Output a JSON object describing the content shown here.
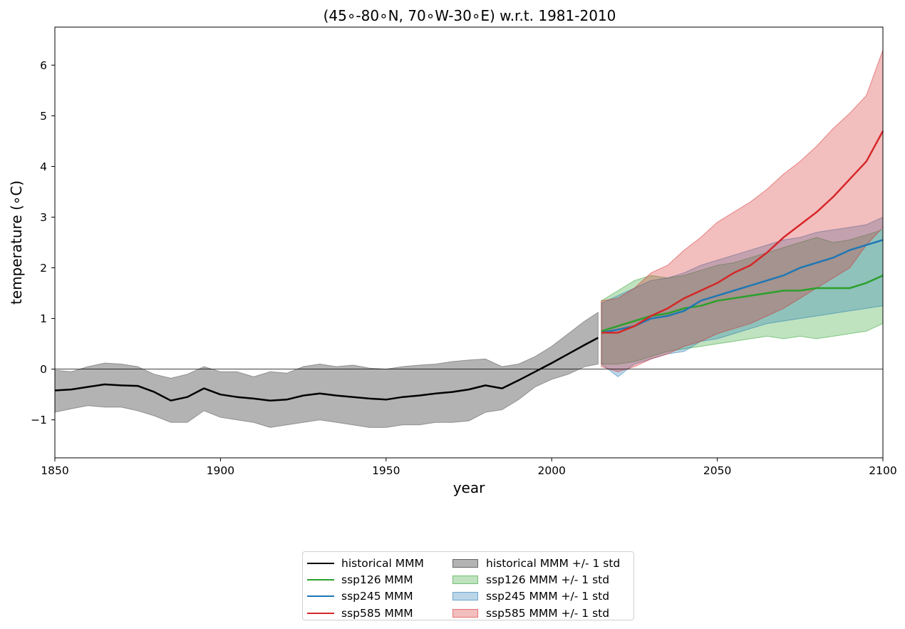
{
  "chart_data": {
    "type": "area",
    "title": "(45$^\\circ$-80$^\\circ$N, 70$^\\circ$W-30$^\\circ$E) w.r.t. 1981-2010",
    "title_display": "(45∘-80∘N, 70∘W-30∘E) w.r.t. 1981-2010",
    "xlabel": "year",
    "ylabel": "temperature (∘C)",
    "xlim": [
      1850,
      2100
    ],
    "ylim": [
      -1.75,
      6.75
    ],
    "xticks": [
      1850,
      1900,
      1950,
      2000,
      2050,
      2100
    ],
    "yticks": [
      -1,
      0,
      1,
      2,
      3,
      4,
      5,
      6
    ],
    "ytick_labels": [
      "−1",
      "0",
      "1",
      "2",
      "3",
      "4",
      "5",
      "6"
    ],
    "zero_line": true,
    "grid": false,
    "legend_placement": "bottom-center (below axes)",
    "series": [
      {
        "name": "historical MMM",
        "band_name": "historical MMM +/- 1 std",
        "color": "#000000",
        "band_color": "#808080",
        "x": [
          1850,
          1855,
          1860,
          1865,
          1870,
          1875,
          1880,
          1885,
          1890,
          1895,
          1900,
          1905,
          1910,
          1915,
          1920,
          1925,
          1930,
          1935,
          1940,
          1945,
          1950,
          1955,
          1960,
          1965,
          1970,
          1975,
          1980,
          1985,
          1990,
          1995,
          2000,
          2005,
          2010,
          2014
        ],
        "mean": [
          -0.42,
          -0.4,
          -0.35,
          -0.3,
          -0.32,
          -0.33,
          -0.45,
          -0.62,
          -0.55,
          -0.38,
          -0.5,
          -0.55,
          -0.58,
          -0.62,
          -0.6,
          -0.52,
          -0.48,
          -0.52,
          -0.55,
          -0.58,
          -0.6,
          -0.55,
          -0.52,
          -0.48,
          -0.45,
          -0.4,
          -0.32,
          -0.38,
          -0.22,
          -0.05,
          0.12,
          0.3,
          0.48,
          0.62
        ],
        "upper": [
          -0.02,
          -0.05,
          0.05,
          0.12,
          0.1,
          0.05,
          -0.1,
          -0.18,
          -0.1,
          0.05,
          -0.05,
          -0.05,
          -0.15,
          -0.05,
          -0.08,
          0.05,
          0.1,
          0.05,
          0.08,
          0.02,
          0.0,
          0.05,
          0.08,
          0.1,
          0.15,
          0.18,
          0.2,
          0.05,
          0.1,
          0.25,
          0.45,
          0.7,
          0.95,
          1.12
        ],
        "lower": [
          -0.85,
          -0.78,
          -0.72,
          -0.75,
          -0.75,
          -0.82,
          -0.92,
          -1.05,
          -1.05,
          -0.82,
          -0.95,
          -1.0,
          -1.05,
          -1.15,
          -1.1,
          -1.05,
          -1.0,
          -1.05,
          -1.1,
          -1.15,
          -1.15,
          -1.1,
          -1.1,
          -1.05,
          -1.05,
          -1.02,
          -0.85,
          -0.8,
          -0.6,
          -0.35,
          -0.2,
          -0.1,
          0.05,
          0.1
        ]
      },
      {
        "name": "ssp126 MMM",
        "band_name": "ssp126 MMM +/- 1 std",
        "color": "#2ca02c",
        "band_color": "#2ca02c",
        "x": [
          2015,
          2020,
          2025,
          2030,
          2035,
          2040,
          2045,
          2050,
          2055,
          2060,
          2065,
          2070,
          2075,
          2080,
          2085,
          2090,
          2095,
          2100
        ],
        "mean": [
          0.75,
          0.85,
          0.95,
          1.05,
          1.1,
          1.2,
          1.25,
          1.35,
          1.4,
          1.45,
          1.5,
          1.55,
          1.55,
          1.6,
          1.6,
          1.6,
          1.7,
          1.85
        ],
        "upper": [
          1.35,
          1.55,
          1.75,
          1.85,
          1.8,
          1.85,
          1.95,
          2.05,
          2.1,
          2.2,
          2.3,
          2.4,
          2.5,
          2.6,
          2.5,
          2.55,
          2.65,
          2.75
        ],
        "lower": [
          0.1,
          0.1,
          0.15,
          0.25,
          0.35,
          0.4,
          0.45,
          0.5,
          0.55,
          0.6,
          0.65,
          0.6,
          0.65,
          0.6,
          0.65,
          0.7,
          0.75,
          0.9
        ]
      },
      {
        "name": "ssp245 MMM",
        "band_name": "ssp245 MMM +/- 1 std",
        "color": "#1f77b4",
        "band_color": "#1f77b4",
        "x": [
          2015,
          2020,
          2025,
          2030,
          2035,
          2040,
          2045,
          2050,
          2055,
          2060,
          2065,
          2070,
          2075,
          2080,
          2085,
          2090,
          2095,
          2100
        ],
        "mean": [
          0.72,
          0.78,
          0.85,
          1.0,
          1.05,
          1.15,
          1.35,
          1.45,
          1.55,
          1.65,
          1.75,
          1.85,
          2.0,
          2.1,
          2.2,
          2.35,
          2.45,
          2.55
        ],
        "upper": [
          1.3,
          1.45,
          1.6,
          1.75,
          1.8,
          1.9,
          2.05,
          2.15,
          2.25,
          2.35,
          2.45,
          2.55,
          2.6,
          2.7,
          2.75,
          2.8,
          2.85,
          3.0
        ],
        "lower": [
          0.1,
          -0.15,
          0.1,
          0.2,
          0.3,
          0.35,
          0.55,
          0.6,
          0.7,
          0.8,
          0.9,
          0.95,
          1.0,
          1.05,
          1.1,
          1.15,
          1.2,
          1.25
        ]
      },
      {
        "name": "ssp585 MMM",
        "band_name": "ssp585 MMM +/- 1 std",
        "color": "#d62728",
        "band_color": "#d62728",
        "x": [
          2015,
          2020,
          2025,
          2030,
          2035,
          2040,
          2045,
          2050,
          2055,
          2060,
          2065,
          2070,
          2075,
          2080,
          2085,
          2090,
          2095,
          2100
        ],
        "mean": [
          0.72,
          0.72,
          0.85,
          1.05,
          1.2,
          1.4,
          1.55,
          1.7,
          1.9,
          2.05,
          2.3,
          2.6,
          2.85,
          3.1,
          3.4,
          3.75,
          4.1,
          4.7
        ],
        "upper": [
          1.35,
          1.4,
          1.6,
          1.9,
          2.05,
          2.35,
          2.6,
          2.9,
          3.1,
          3.3,
          3.55,
          3.85,
          4.1,
          4.4,
          4.75,
          5.05,
          5.4,
          6.3
        ],
        "lower": [
          0.05,
          -0.05,
          0.05,
          0.2,
          0.3,
          0.45,
          0.55,
          0.7,
          0.8,
          0.9,
          1.05,
          1.2,
          1.4,
          1.6,
          1.8,
          2.0,
          2.45,
          2.8
        ]
      }
    ]
  },
  "legend": {
    "col1": [
      "historical MMM",
      "ssp126 MMM",
      "ssp245 MMM",
      "ssp585 MMM"
    ],
    "col2": [
      "historical MMM +/- 1 std",
      "ssp126 MMM +/- 1 std",
      "ssp245 MMM +/- 1 std",
      "ssp585 MMM +/- 1 std"
    ],
    "line_colors": [
      "#000000",
      "#2ca02c",
      "#1f77b4",
      "#d62728"
    ],
    "fill_colors": [
      "#808080",
      "#2ca02c",
      "#1f77b4",
      "#d62728"
    ]
  }
}
